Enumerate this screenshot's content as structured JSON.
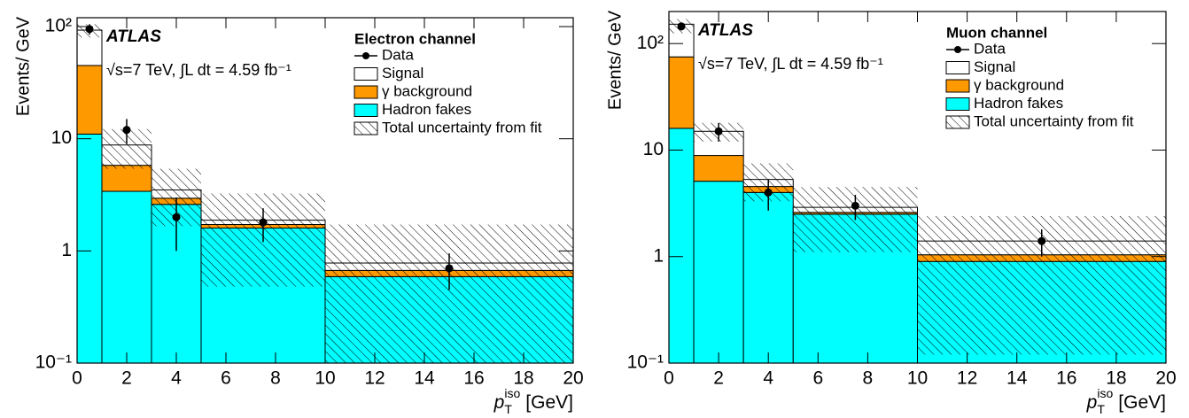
{
  "chart_data": [
    {
      "type": "histogram",
      "title": "Electron channel",
      "experiment": "ATLAS",
      "annotation": "√s=7 TeV, ∫L dt = 4.59 fb⁻¹",
      "y_label": "Events/ GeV",
      "x_label": [
        "p",
        "T",
        "iso",
        "[GeV]"
      ],
      "log_y": true,
      "xlim": [
        0,
        20
      ],
      "ylim": [
        0.1,
        120
      ],
      "xticks": [
        0,
        2,
        4,
        6,
        8,
        10,
        12,
        14,
        16,
        18,
        20
      ],
      "yticks": [
        {
          "value": 0.1,
          "label": "10⁻¹"
        },
        1,
        10,
        {
          "value": 100,
          "label": "10²"
        }
      ],
      "bins": [
        0,
        1,
        3,
        5,
        10,
        20
      ],
      "series": [
        {
          "name": "Hadron fakes",
          "color": "#00ffff",
          "values": [
            11,
            3.4,
            2.6,
            1.6,
            0.59
          ]
        },
        {
          "name": "γ background",
          "color": "#ff9900",
          "values": [
            34,
            2.4,
            0.35,
            0.12,
            0.08
          ]
        },
        {
          "name": "Signal",
          "color": "#ffffff",
          "values": [
            48,
            3.0,
            0.55,
            0.16,
            0.11
          ]
        }
      ],
      "data": {
        "name": "Data",
        "color": "#000000",
        "x": [
          0.5,
          2,
          4,
          7.5,
          15
        ],
        "values": [
          95,
          12,
          2.0,
          1.8,
          0.7
        ],
        "errors": [
          10,
          3,
          1.0,
          0.6,
          0.25
        ]
      },
      "uncertainty": {
        "name": "Total uncertainty from fit",
        "low": [
          80,
          5.4,
          1.66,
          0.48,
          0.1
        ],
        "high": [
          105,
          12.2,
          5.4,
          3.25,
          1.72
        ]
      }
    },
    {
      "type": "histogram",
      "title": "Muon channel",
      "experiment": "ATLAS",
      "annotation": "√s=7 TeV, ∫L dt = 4.59 fb⁻¹",
      "y_label": "Events/ GeV",
      "x_label": [
        "p",
        "T",
        "iso",
        "[GeV]"
      ],
      "log_y": true,
      "xlim": [
        0,
        20
      ],
      "ylim": [
        0.1,
        200
      ],
      "xticks": [
        0,
        2,
        4,
        6,
        8,
        10,
        12,
        14,
        16,
        18,
        20
      ],
      "yticks": [
        {
          "value": 0.1,
          "label": "10⁻¹"
        },
        1,
        10,
        {
          "value": 100,
          "label": "10²"
        }
      ],
      "bins": [
        0,
        1,
        3,
        5,
        10,
        20
      ],
      "series": [
        {
          "name": "Hadron fakes",
          "color": "#00ffff",
          "values": [
            16,
            5.1,
            4.0,
            2.5,
            0.9
          ]
        },
        {
          "name": "γ background",
          "color": "#ff9900",
          "values": [
            59,
            3.8,
            0.55,
            0.1,
            0.14
          ]
        },
        {
          "name": "Signal",
          "color": "#ffffff",
          "values": [
            77,
            6.1,
            0.75,
            0.3,
            0.36
          ]
        }
      ],
      "data": {
        "name": "Data",
        "color": "#000000",
        "x": [
          0.5,
          2,
          4,
          7.5,
          15
        ],
        "values": [
          145,
          15,
          4.0,
          3.0,
          1.4
        ],
        "errors": [
          12,
          3,
          1.3,
          0.8,
          0.4
        ]
      },
      "uncertainty": {
        "name": "Total uncertainty from fit",
        "low": [
          125,
          12,
          3.3,
          1.1,
          0.12
        ],
        "high": [
          170,
          18,
          7.5,
          4.5,
          2.4
        ]
      }
    }
  ]
}
